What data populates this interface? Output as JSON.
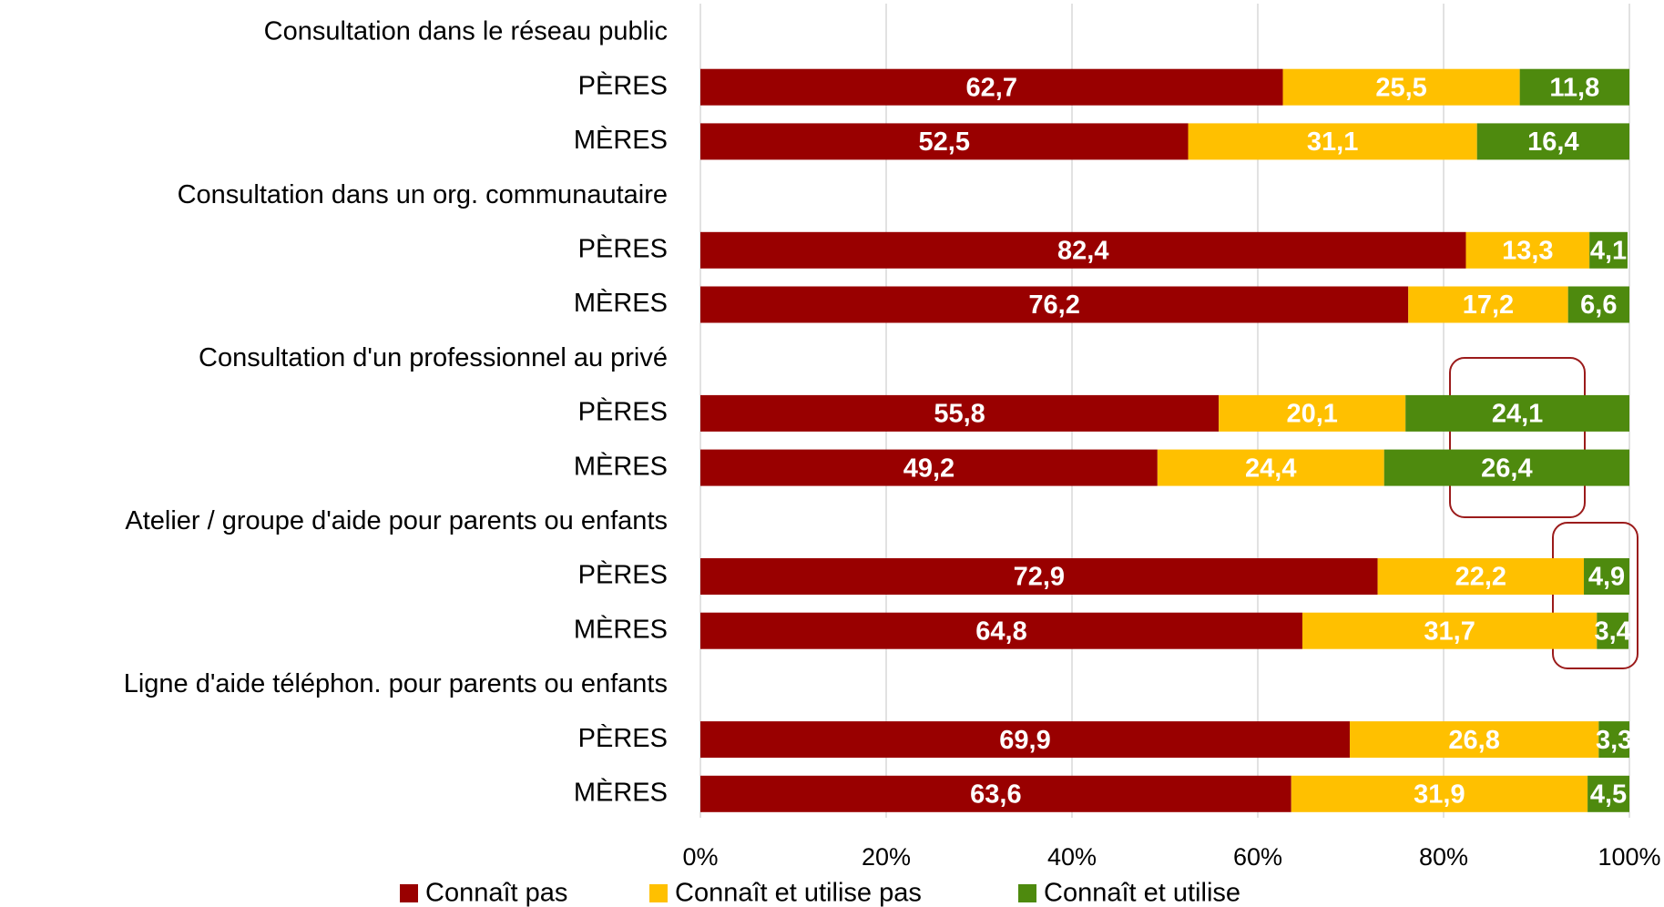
{
  "chart_data": {
    "type": "stacked_barh",
    "categories": [
      "Consultation dans le réseau public",
      "PÈRES",
      "MÈRES",
      "Consultation dans un org. communautaire",
      "PÈRES",
      "MÈRES",
      "Consultation d'un professionnel au privé",
      "PÈRES",
      "MÈRES",
      "Atelier / groupe d'aide pour parents ou enfants",
      "PÈRES",
      "MÈRES",
      "Ligne d'aide téléphon. pour parents ou enfants",
      "PÈRES",
      "MÈRES"
    ],
    "series": [
      {
        "name": "Connaît pas",
        "color": "#990000",
        "values": [
          null,
          62.7,
          52.5,
          null,
          82.4,
          76.2,
          null,
          55.8,
          49.2,
          null,
          72.9,
          64.8,
          null,
          69.9,
          63.6
        ],
        "value_labels": [
          null,
          "62,7",
          "52,5",
          null,
          "82,4",
          "76,2",
          null,
          "55,8",
          "49,2",
          null,
          "72,9",
          "64,8",
          null,
          "69,9",
          "63,6"
        ]
      },
      {
        "name": "Connaît et utilise pas",
        "color": "#ffc000",
        "values": [
          null,
          25.5,
          31.1,
          null,
          13.3,
          17.2,
          null,
          20.1,
          24.4,
          null,
          22.2,
          31.7,
          null,
          26.8,
          31.9
        ],
        "value_labels": [
          null,
          "25,5",
          "31,1",
          null,
          "13,3",
          "17,2",
          null,
          "20,1",
          "24,4",
          null,
          "22,2",
          "31,7",
          null,
          "26,8",
          "31,9"
        ]
      },
      {
        "name": "Connaît et utilise",
        "color": "#4e8a0e",
        "values": [
          null,
          11.8,
          16.4,
          null,
          4.1,
          6.6,
          null,
          24.1,
          26.4,
          null,
          4.9,
          3.4,
          null,
          3.3,
          4.5
        ],
        "value_labels": [
          null,
          "11,8",
          "16,4",
          null,
          "4,1",
          "6,6",
          null,
          "24,1",
          "26,4",
          null,
          "4,9",
          "3,4",
          null,
          "3,3",
          "4,5"
        ]
      }
    ],
    "xlim": [
      0,
      100
    ],
    "xticks": [
      {
        "value": 0,
        "label": "0%"
      },
      {
        "value": 20,
        "label": "20%"
      },
      {
        "value": 40,
        "label": "40%"
      },
      {
        "value": 60,
        "label": "60%"
      },
      {
        "value": 80,
        "label": "80%"
      },
      {
        "value": 100,
        "label": "100%"
      }
    ],
    "grid": true,
    "legend": "bottom"
  }
}
